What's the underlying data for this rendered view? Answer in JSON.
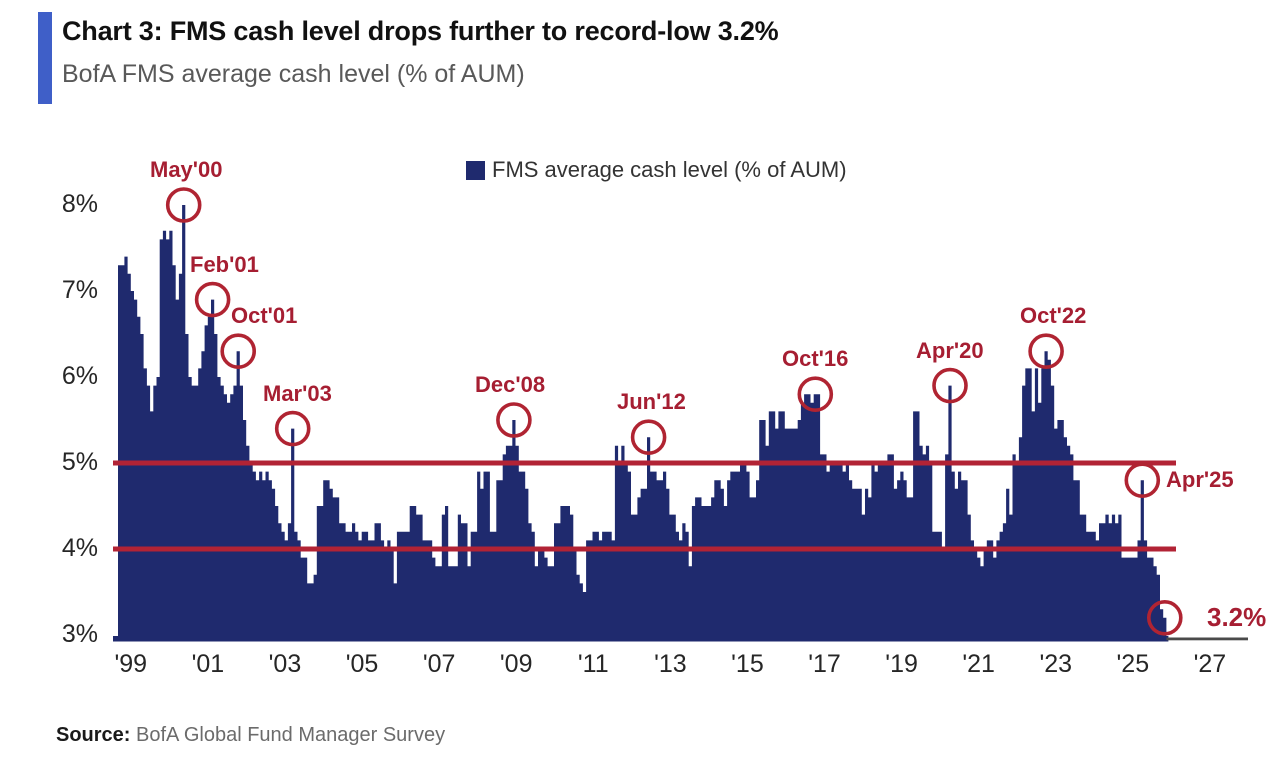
{
  "header": {
    "title": "Chart 3: FMS cash level drops further to record-low 3.2%",
    "subtitle": "BofA FMS average cash level (% of AUM)",
    "accent_bar_color": "#3f5fc8"
  },
  "legend": {
    "label": "FMS average cash level (% of AUM)",
    "swatch_color": "#1f2a6e"
  },
  "source": {
    "prefix": "Source:",
    "text": " BofA Global Fund Manager Survey"
  },
  "chart_data": {
    "type": "bar",
    "title": "BofA FMS average cash level (% of AUM)",
    "series_name": "FMS average cash level (% of AUM)",
    "unit": "% of AUM",
    "frequency": "monthly",
    "start_month": "Sep 1998",
    "end_month": "Nov 2025",
    "ylim": [
      3,
      8
    ],
    "y_tick_values": [
      8,
      7,
      6,
      5,
      4,
      3
    ],
    "y_tick_suffix": "%",
    "x_tick_labels": [
      "'99",
      "'01",
      "'03",
      "'05",
      "'07",
      "'09",
      "'11",
      "'13",
      "'15",
      "'17",
      "'19",
      "'21",
      "'23",
      "'25",
      "'27"
    ],
    "x_tick_years": [
      1999,
      2001,
      2003,
      2005,
      2007,
      2009,
      2011,
      2013,
      2015,
      2017,
      2019,
      2021,
      2023,
      2025,
      2027
    ],
    "reference_lines": [
      5,
      4
    ],
    "grid": false,
    "legend_position": "top-center",
    "bar_color": "#1f2a6e",
    "reference_line_color": "#b22335",
    "annotation_color": "#a61e32",
    "values": [
      7.3,
      7.3,
      7.4,
      7.2,
      7.0,
      6.9,
      6.7,
      6.5,
      6.1,
      5.9,
      5.6,
      5.9,
      6.0,
      7.6,
      7.7,
      7.6,
      7.7,
      7.3,
      6.9,
      7.2,
      8.0,
      6.5,
      6.0,
      5.9,
      5.9,
      6.1,
      6.3,
      6.6,
      6.7,
      6.9,
      6.5,
      6.0,
      5.9,
      5.8,
      5.7,
      5.8,
      5.9,
      6.3,
      5.9,
      5.5,
      5.2,
      5.0,
      4.9,
      4.8,
      4.9,
      4.8,
      4.9,
      4.8,
      4.7,
      4.5,
      4.3,
      4.2,
      4.1,
      4.3,
      5.4,
      4.2,
      4.1,
      3.9,
      3.9,
      3.6,
      3.6,
      3.7,
      4.5,
      4.5,
      4.8,
      4.8,
      4.7,
      4.6,
      4.6,
      4.3,
      4.3,
      4.2,
      4.2,
      4.3,
      4.2,
      4.1,
      4.2,
      4.2,
      4.1,
      4.1,
      4.3,
      4.3,
      4.1,
      4.0,
      4.1,
      4.0,
      3.6,
      4.2,
      4.2,
      4.2,
      4.2,
      4.5,
      4.5,
      4.4,
      4.4,
      4.1,
      4.1,
      4.1,
      3.9,
      3.8,
      3.8,
      4.4,
      4.5,
      3.8,
      3.8,
      3.8,
      4.4,
      4.3,
      4.3,
      3.8,
      4.2,
      4.2,
      4.9,
      4.7,
      4.9,
      4.9,
      4.2,
      4.2,
      4.8,
      4.8,
      5.1,
      5.2,
      5.2,
      5.5,
      5.2,
      4.9,
      4.9,
      4.7,
      4.3,
      4.2,
      3.8,
      4.0,
      4.0,
      3.9,
      3.8,
      3.8,
      4.3,
      4.3,
      4.5,
      4.5,
      4.5,
      4.4,
      4.0,
      3.7,
      3.6,
      3.5,
      4.1,
      4.1,
      4.2,
      4.2,
      4.1,
      4.2,
      4.2,
      4.2,
      4.1,
      5.2,
      5.0,
      5.2,
      5.0,
      4.9,
      4.4,
      4.4,
      4.6,
      4.7,
      4.7,
      5.3,
      4.9,
      4.9,
      4.8,
      4.8,
      4.9,
      4.7,
      4.4,
      4.4,
      4.2,
      4.1,
      4.3,
      4.2,
      3.8,
      4.5,
      4.6,
      4.6,
      4.5,
      4.5,
      4.5,
      4.6,
      4.8,
      4.8,
      4.7,
      4.5,
      4.8,
      4.9,
      4.9,
      4.9,
      5.0,
      5.0,
      4.9,
      4.6,
      4.6,
      4.8,
      5.5,
      5.5,
      5.2,
      5.6,
      5.6,
      5.4,
      5.6,
      5.6,
      5.4,
      5.4,
      5.4,
      5.4,
      5.5,
      5.7,
      5.8,
      5.8,
      5.7,
      5.8,
      5.8,
      5.1,
      5.1,
      4.9,
      5.0,
      5.0,
      5.0,
      5.0,
      4.9,
      5.0,
      4.8,
      4.7,
      4.7,
      4.7,
      4.4,
      4.7,
      4.6,
      5.0,
      4.9,
      5.0,
      5.0,
      5.0,
      5.1,
      5.1,
      4.7,
      4.8,
      4.9,
      4.8,
      4.6,
      4.6,
      5.6,
      5.6,
      5.2,
      5.1,
      5.2,
      5.0,
      4.2,
      4.2,
      4.2,
      4.0,
      5.1,
      5.9,
      4.9,
      4.7,
      4.9,
      4.8,
      4.8,
      4.4,
      4.1,
      4.0,
      3.9,
      3.8,
      4.0,
      4.1,
      4.1,
      3.9,
      4.1,
      4.2,
      4.3,
      4.7,
      4.4,
      5.1,
      5.0,
      5.3,
      5.9,
      6.1,
      6.1,
      5.6,
      6.1,
      5.7,
      6.1,
      6.3,
      6.2,
      5.9,
      5.4,
      5.5,
      5.5,
      5.3,
      5.2,
      5.1,
      4.8,
      4.8,
      4.4,
      4.4,
      4.2,
      4.2,
      4.2,
      4.1,
      4.3,
      4.3,
      4.4,
      4.3,
      4.4,
      4.3,
      4.4,
      3.9,
      3.9,
      3.9,
      3.9,
      3.9,
      4.1,
      4.8,
      4.1,
      3.9,
      3.9,
      3.8,
      3.7,
      3.3,
      3.2
    ],
    "annotations": [
      {
        "label": "May'00",
        "month": "May 2000",
        "value": 8.0,
        "index": 20,
        "side": "above",
        "dx": 3
      },
      {
        "label": "Feb'01",
        "month": "Feb 2001",
        "value": 6.9,
        "index": 29,
        "side": "above",
        "dx": 12
      },
      {
        "label": "Oct'01",
        "month": "Oct 2001",
        "value": 6.3,
        "index": 37,
        "side": "above",
        "dx": 26
      },
      {
        "label": "Mar'03",
        "month": "Mar 2003",
        "value": 5.4,
        "index": 54,
        "side": "above",
        "dx": 5
      },
      {
        "label": "Dec'08",
        "month": "Dec 2008",
        "value": 5.5,
        "index": 123,
        "side": "above",
        "dx": -4
      },
      {
        "label": "Jun'12",
        "month": "Jun 2012",
        "value": 5.3,
        "index": 165,
        "side": "above",
        "dx": 3
      },
      {
        "label": "Oct'16",
        "month": "Oct 2016",
        "value": 5.8,
        "index": 217,
        "side": "above",
        "dx": 0
      },
      {
        "label": "Apr'20",
        "month": "Apr 2020",
        "value": 5.9,
        "index": 259,
        "side": "above",
        "dx": 0
      },
      {
        "label": "Oct'22",
        "month": "Oct 2022",
        "value": 6.3,
        "index": 289,
        "side": "above",
        "dx": 7
      },
      {
        "label": "Apr'25",
        "month": "Apr 2025",
        "value": 4.8,
        "index": 319,
        "side": "right",
        "dx": 8
      },
      {
        "label": "3.2%",
        "month": "Nov 2025",
        "value": 3.2,
        "index": 326,
        "side": "right",
        "dx": 26,
        "emphasis": true
      }
    ]
  }
}
